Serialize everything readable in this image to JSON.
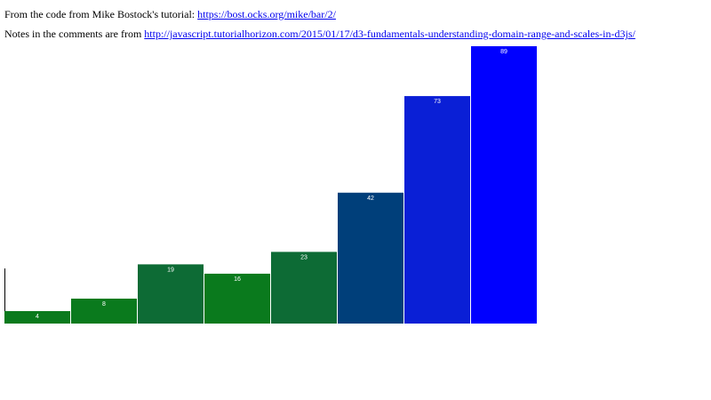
{
  "intro": {
    "line1_text": "From the code from Mike Bostock's tutorial: ",
    "line1_link": "https://bost.ocks.org/mike/bar/2/",
    "line2_text": "Notes in the comments are from ",
    "line2_link": "http://javascript.tutorialhorizon.com/2015/01/17/d3-fundamentals-understanding-domain-range-and-scales-in-d3js/"
  },
  "chart_data": {
    "type": "bar",
    "values": [
      4,
      8,
      19,
      16,
      23,
      42,
      73,
      89
    ],
    "colors": [
      "#0a7a1d",
      "#0a7a1d",
      "#0d6b35",
      "#0a7a1d",
      "#0d6b35",
      "#003f7a",
      "#0a1fd6",
      "#0000ff"
    ],
    "ylim": [
      0,
      89
    ]
  }
}
